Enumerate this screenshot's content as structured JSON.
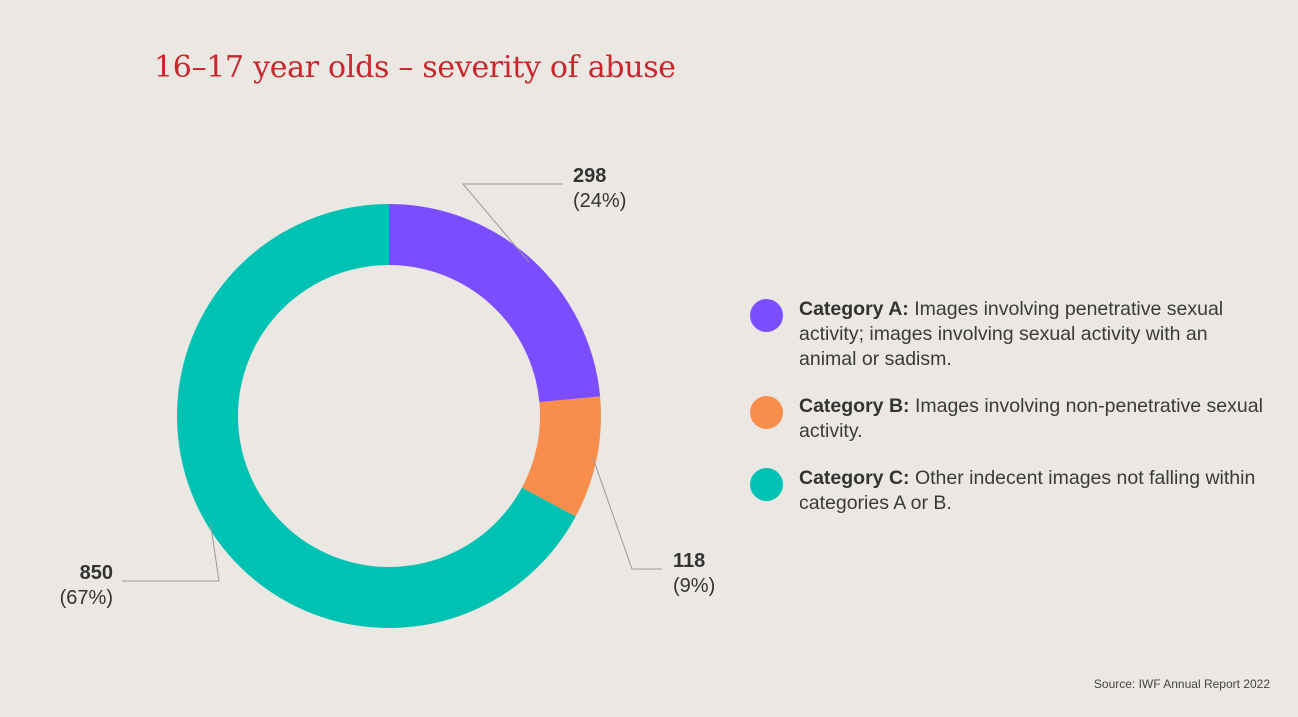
{
  "chart_data": {
    "type": "pie",
    "title": "16–17 year olds – severity of abuse",
    "donut": true,
    "categories": [
      "Category A",
      "Category B",
      "Category C"
    ],
    "values": [
      298,
      118,
      850
    ],
    "percent_labels": [
      "(24%)",
      "(9%)",
      "(67%)"
    ],
    "colors": [
      "#7c4dff",
      "#f98d4c",
      "#00c2b3"
    ],
    "legend_placement": "right",
    "legend": [
      {
        "key": "Category A:",
        "text": "Images involving penetrative sexual activity; images involving sexual activity with an animal or sadism."
      },
      {
        "key": "Category B:",
        "text": "Images involving non-penetrative sexual activity."
      },
      {
        "key": "Category C:",
        "text": "Other indecent images not falling within categories A or B."
      }
    ]
  },
  "source": "Source: IWF Annual Report 2022"
}
